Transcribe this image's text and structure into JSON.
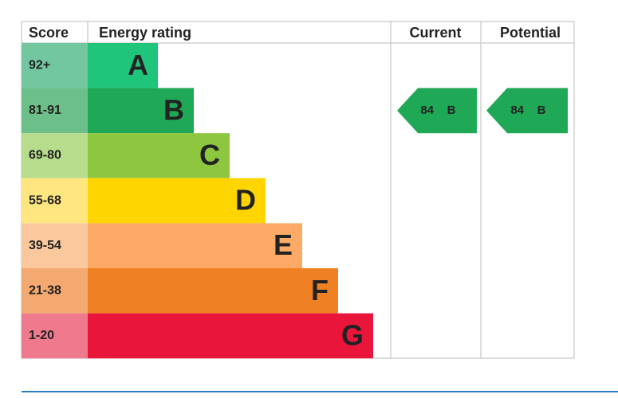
{
  "header": {
    "score": "Score",
    "rating": "Energy rating",
    "current": "Current",
    "potential": "Potential"
  },
  "bands": [
    {
      "score": "92+",
      "letter": "A",
      "color": "#1ec57a",
      "score_color": "#72c6a0"
    },
    {
      "score": "81-91",
      "letter": "B",
      "color": "#1fa855",
      "score_color": "#6cbf88"
    },
    {
      "score": "69-80",
      "letter": "C",
      "color": "#8dc63f",
      "score_color": "#b6dc8c"
    },
    {
      "score": "55-68",
      "letter": "D",
      "color": "#ffd500",
      "score_color": "#ffe680"
    },
    {
      "score": "39-54",
      "letter": "E",
      "color": "#fcaa65",
      "score_color": "#fbc89e"
    },
    {
      "score": "21-38",
      "letter": "F",
      "color": "#ef8023",
      "score_color": "#f4a970"
    },
    {
      "score": "1-20",
      "letter": "G",
      "color": "#e9153b",
      "score_color": "#ef7a8e"
    }
  ],
  "current": {
    "score": 84,
    "letter": "B"
  },
  "potential": {
    "score": 84,
    "letter": "B"
  }
}
